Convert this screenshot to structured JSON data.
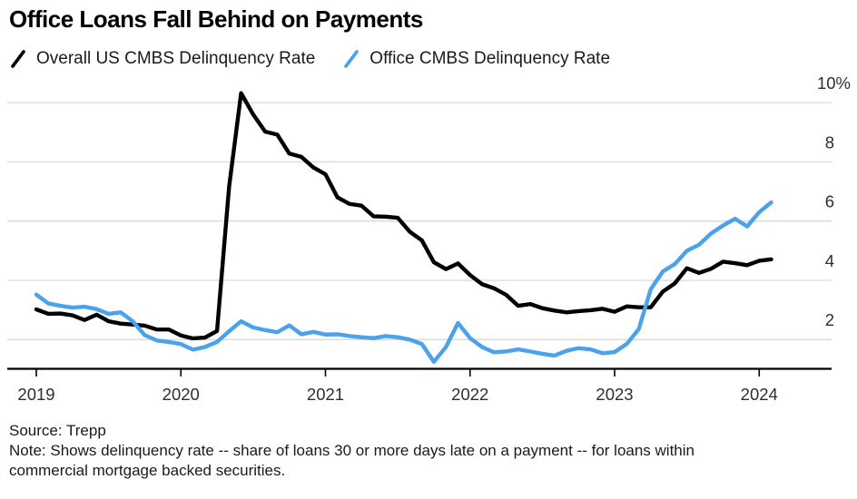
{
  "title": "Office Loans Fall Behind on Payments",
  "legend": [
    {
      "label": "Overall US CMBS Delinquency Rate",
      "color": "#000000"
    },
    {
      "label": "Office CMBS Delinquency Rate",
      "color": "#49A2EB"
    }
  ],
  "footer": {
    "source": "Source: Trepp",
    "note_line1": "Note: Shows delinquency rate -- share of loans 30 or more days late on a payment -- for loans within",
    "note_line2": "commercial mortgage backed securities."
  },
  "colors": {
    "overall_line": "#000000",
    "office_line": "#49A2EB",
    "gridline": "#d9d9d9",
    "axis": "#000000",
    "tick_label": "#2e2e2e"
  },
  "chart_data": {
    "type": "line",
    "title": "Office Loans Fall Behind on Payments",
    "x_unit": "month",
    "x_start": "2019-01",
    "x_end": "2024-02",
    "x_tick_labels": [
      "2019",
      "2020",
      "2021",
      "2022",
      "2023",
      "2024"
    ],
    "y_ticks": [
      2,
      4,
      6,
      8,
      10
    ],
    "y_tick_labels": [
      "2",
      "4",
      "6",
      "8",
      "10%"
    ],
    "ylim": [
      1.0,
      10.45
    ],
    "grid": "horizontal",
    "legend_position": "top-left",
    "series": [
      {
        "name": "Overall US CMBS Delinquency Rate",
        "color": "#000000",
        "values": [
          3.02,
          2.87,
          2.88,
          2.82,
          2.66,
          2.84,
          2.62,
          2.54,
          2.51,
          2.47,
          2.34,
          2.34,
          2.14,
          2.04,
          2.07,
          2.29,
          7.15,
          10.32,
          9.6,
          9.02,
          8.92,
          8.28,
          8.17,
          7.81,
          7.58,
          6.8,
          6.58,
          6.52,
          6.16,
          6.15,
          6.11,
          5.64,
          5.35,
          4.61,
          4.38,
          4.57,
          4.18,
          3.87,
          3.73,
          3.51,
          3.14,
          3.2,
          3.06,
          2.98,
          2.92,
          2.96,
          2.99,
          3.04,
          2.94,
          3.12,
          3.09,
          3.09,
          3.62,
          3.9,
          4.41,
          4.25,
          4.39,
          4.63,
          4.58,
          4.51,
          4.66,
          4.71
        ]
      },
      {
        "name": "Office CMBS Delinquency Rate",
        "color": "#49A2EB",
        "values": [
          3.52,
          3.22,
          3.14,
          3.08,
          3.11,
          3.03,
          2.87,
          2.92,
          2.62,
          2.15,
          1.97,
          1.92,
          1.85,
          1.66,
          1.75,
          1.92,
          2.28,
          2.62,
          2.41,
          2.32,
          2.25,
          2.48,
          2.18,
          2.26,
          2.17,
          2.18,
          2.12,
          2.08,
          2.05,
          2.12,
          2.08,
          2.0,
          1.85,
          1.25,
          1.75,
          2.56,
          2.05,
          1.75,
          1.57,
          1.6,
          1.67,
          1.6,
          1.52,
          1.46,
          1.62,
          1.71,
          1.67,
          1.54,
          1.58,
          1.85,
          2.35,
          3.7,
          4.3,
          4.55,
          5.0,
          5.2,
          5.58,
          5.85,
          6.08,
          5.82,
          6.3,
          6.63
        ]
      }
    ]
  }
}
